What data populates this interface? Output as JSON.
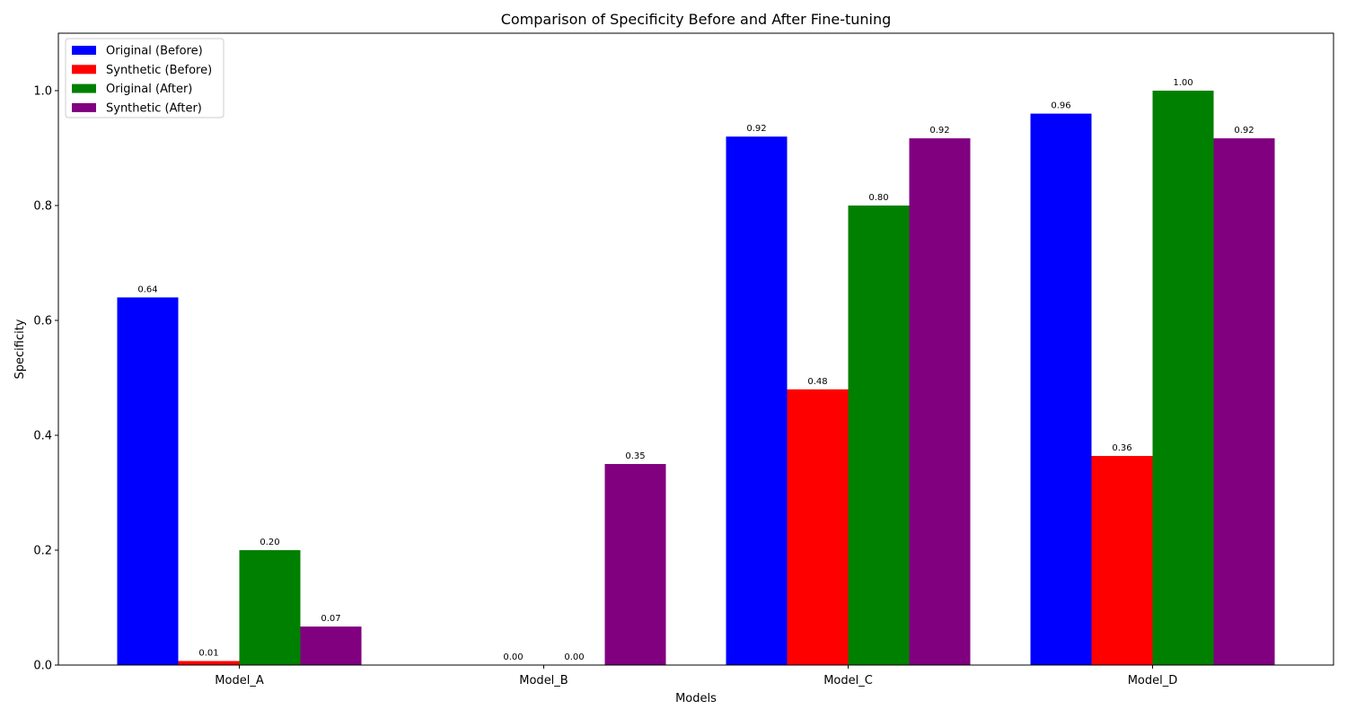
{
  "chart_data": {
    "type": "bar",
    "title": "Comparison of Specificity Before and After Fine-tuning",
    "xlabel": "Models",
    "ylabel": "Specificity",
    "categories": [
      "Model_A",
      "Model_B",
      "Model_C",
      "Model_D"
    ],
    "ylim": [
      0,
      1.1
    ],
    "yticks": [
      "0.0",
      "0.2",
      "0.4",
      "0.6",
      "0.8",
      "1.0"
    ],
    "grid": false,
    "legend_position": "top-left",
    "series": [
      {
        "name": "Original (Before)",
        "color": "#0000ff",
        "values": [
          0.64,
          0.0,
          0.92,
          0.96
        ],
        "labels": [
          "0.64",
          "",
          "0.92",
          "0.96"
        ]
      },
      {
        "name": "Synthetic (Before)",
        "color": "#ff0000",
        "values": [
          0.007,
          0.0,
          0.48,
          0.364
        ],
        "labels": [
          "0.01",
          "0.00",
          "0.48",
          "0.36"
        ]
      },
      {
        "name": "Original (After)",
        "color": "#008000",
        "values": [
          0.2,
          0.0,
          0.8,
          1.0
        ],
        "labels": [
          "0.20",
          "0.00",
          "0.80",
          "1.00"
        ]
      },
      {
        "name": "Synthetic (After)",
        "color": "#800080",
        "values": [
          0.067,
          0.35,
          0.917,
          0.917
        ],
        "labels": [
          "0.07",
          "0.35",
          "0.92",
          "0.92"
        ]
      }
    ]
  }
}
